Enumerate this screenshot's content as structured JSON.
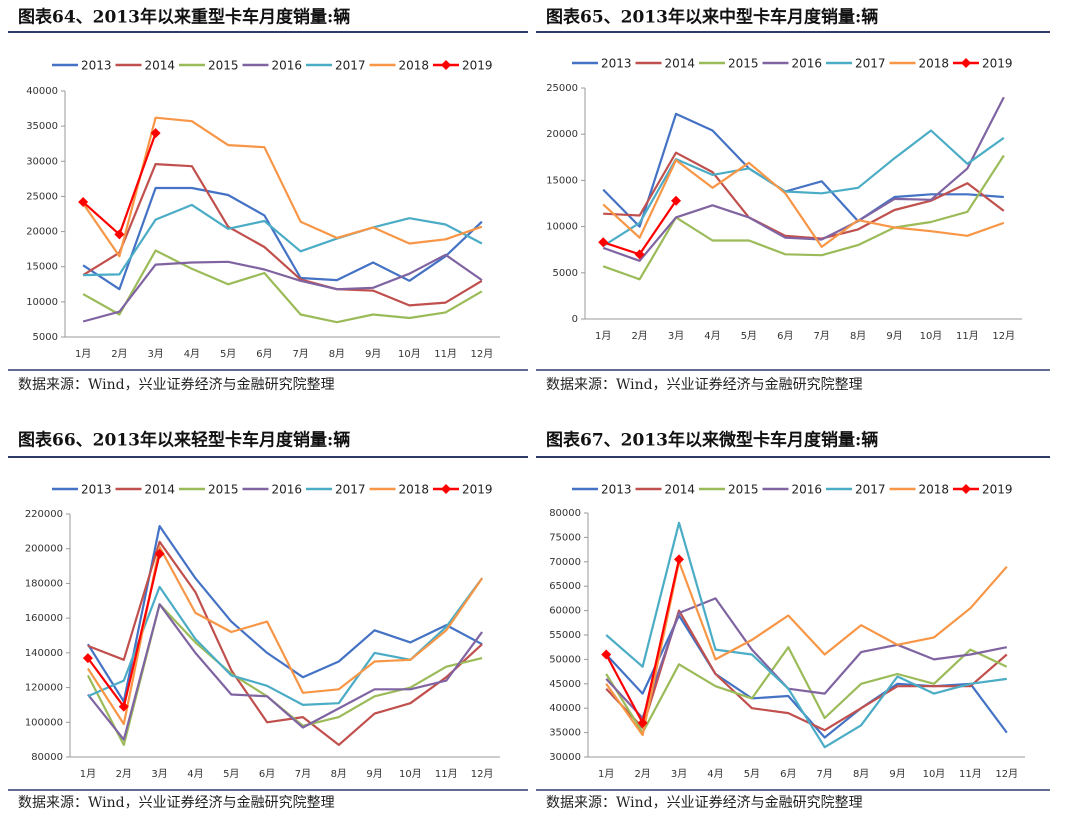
{
  "chart_data": [
    {
      "type": "line",
      "title": "图表64、2013年以来重型卡车月度销量:辆",
      "source": "数据来源：Wind，兴业证券经济与金融研究院整理",
      "categories": [
        "1月",
        "2月",
        "3月",
        "4月",
        "5月",
        "6月",
        "7月",
        "8月",
        "9月",
        "10月",
        "11月",
        "12月"
      ],
      "ylim": [
        5000,
        40000
      ],
      "yticks": [
        5000,
        10000,
        15000,
        20000,
        25000,
        30000,
        35000,
        40000
      ],
      "series": [
        {
          "name": "2013",
          "color": "#4472c4",
          "values": [
            15200,
            11800,
            26200,
            26200,
            25200,
            22300,
            13400,
            13100,
            15600,
            13000,
            16500,
            21400
          ]
        },
        {
          "name": "2014",
          "color": "#c0504d",
          "values": [
            13800,
            17000,
            29600,
            29300,
            20700,
            17800,
            13200,
            11800,
            11600,
            9500,
            9900,
            13000
          ]
        },
        {
          "name": "2015",
          "color": "#9bbb59",
          "values": [
            11100,
            8200,
            17300,
            14700,
            12500,
            14100,
            8200,
            7100,
            8200,
            7700,
            8500,
            11500
          ]
        },
        {
          "name": "2016",
          "color": "#8064a2",
          "values": [
            7200,
            8600,
            15300,
            15600,
            15700,
            14600,
            13000,
            11800,
            12000,
            14000,
            16700,
            13100
          ]
        },
        {
          "name": "2017",
          "color": "#4bacc6",
          "values": [
            13800,
            13900,
            21700,
            23800,
            20400,
            21500,
            17200,
            19000,
            20600,
            21900,
            21000,
            18300
          ]
        },
        {
          "name": "2018",
          "color": "#f79646",
          "values": [
            24000,
            16500,
            36200,
            35700,
            32300,
            32000,
            21400,
            19100,
            20600,
            18300,
            18900,
            20700
          ]
        },
        {
          "name": "2019",
          "color": "#ff0000",
          "marker": "diamond",
          "values": [
            24200,
            19600,
            34000,
            null,
            null,
            null,
            null,
            null,
            null,
            null,
            null,
            null
          ]
        }
      ]
    },
    {
      "type": "line",
      "title": "图表65、2013年以来中型卡车月度销量:辆",
      "source": "数据来源：Wind，兴业证券经济与金融研究院整理",
      "categories": [
        "1月",
        "2月",
        "3月",
        "4月",
        "5月",
        "6月",
        "7月",
        "8月",
        "9月",
        "10月",
        "11月",
        "12月"
      ],
      "ylim": [
        0,
        25000
      ],
      "yticks": [
        0,
        5000,
        10000,
        15000,
        20000,
        25000
      ],
      "series": [
        {
          "name": "2013",
          "color": "#4472c4",
          "values": [
            14000,
            10000,
            22200,
            20400,
            16300,
            13800,
            14900,
            10600,
            13200,
            13500,
            13500,
            13200
          ]
        },
        {
          "name": "2014",
          "color": "#c0504d",
          "values": [
            11400,
            11200,
            18000,
            15900,
            11000,
            9000,
            8700,
            9700,
            11800,
            12800,
            14700,
            11700
          ]
        },
        {
          "name": "2015",
          "color": "#9bbb59",
          "values": [
            5700,
            4300,
            11000,
            8500,
            8500,
            7000,
            6900,
            8000,
            9900,
            10500,
            11600,
            17700
          ]
        },
        {
          "name": "2016",
          "color": "#8064a2",
          "values": [
            7700,
            6300,
            11000,
            12300,
            11000,
            8800,
            8600,
            10600,
            13000,
            12900,
            16300,
            24000
          ]
        },
        {
          "name": "2017",
          "color": "#4bacc6",
          "values": [
            7900,
            10400,
            17300,
            15600,
            16300,
            13800,
            13600,
            14200,
            17400,
            20400,
            16800,
            19600
          ]
        },
        {
          "name": "2018",
          "color": "#f79646",
          "values": [
            12400,
            8800,
            17200,
            14200,
            16900,
            13600,
            7800,
            10700,
            9900,
            9500,
            9000,
            10400
          ]
        },
        {
          "name": "2019",
          "color": "#ff0000",
          "marker": "diamond",
          "values": [
            8300,
            7000,
            12800,
            null,
            null,
            null,
            null,
            null,
            null,
            null,
            null,
            null
          ]
        }
      ]
    },
    {
      "type": "line",
      "title": "图表66、2013年以来轻型卡车月度销量:辆",
      "source": "数据来源：Wind，兴业证券经济与金融研究院整理",
      "categories": [
        "1月",
        "2月",
        "3月",
        "4月",
        "5月",
        "6月",
        "7月",
        "8月",
        "9月",
        "10月",
        "11月",
        "12月"
      ],
      "ylim": [
        80000,
        220000
      ],
      "yticks": [
        80000,
        100000,
        120000,
        140000,
        160000,
        180000,
        200000,
        220000
      ],
      "series": [
        {
          "name": "2013",
          "color": "#4472c4",
          "values": [
            145000,
            112000,
            213000,
            183000,
            158000,
            140000,
            126000,
            135000,
            153000,
            146000,
            156000,
            145000
          ]
        },
        {
          "name": "2014",
          "color": "#c0504d",
          "values": [
            144000,
            136000,
            204000,
            175000,
            130000,
            100000,
            103000,
            87000,
            105000,
            111000,
            126000,
            145000
          ]
        },
        {
          "name": "2015",
          "color": "#9bbb59",
          "values": [
            127000,
            87000,
            168000,
            146000,
            128000,
            115000,
            98000,
            103000,
            115000,
            120000,
            132000,
            137000
          ]
        },
        {
          "name": "2016",
          "color": "#8064a2",
          "values": [
            116000,
            90000,
            168000,
            140000,
            116000,
            115000,
            97000,
            108000,
            119000,
            119000,
            124000,
            152000
          ]
        },
        {
          "name": "2017",
          "color": "#4bacc6",
          "values": [
            115000,
            124000,
            178000,
            148000,
            127000,
            121000,
            110000,
            111000,
            140000,
            136000,
            155000,
            183000
          ]
        },
        {
          "name": "2018",
          "color": "#f79646",
          "values": [
            131000,
            99000,
            201000,
            163000,
            152000,
            158000,
            117000,
            119000,
            135000,
            136000,
            153000,
            183000
          ]
        },
        {
          "name": "2019",
          "color": "#ff0000",
          "marker": "diamond",
          "values": [
            137000,
            109000,
            197000,
            null,
            null,
            null,
            null,
            null,
            null,
            null,
            null,
            null
          ]
        }
      ]
    },
    {
      "type": "line",
      "title": "图表67、2013年以来微型卡车月度销量:辆",
      "source": "数据来源：Wind，兴业证券经济与金融研究院整理",
      "categories": [
        "1月",
        "2月",
        "3月",
        "4月",
        "5月",
        "6月",
        "7月",
        "8月",
        "9月",
        "10月",
        "11月",
        "12月"
      ],
      "ylim": [
        30000,
        80000
      ],
      "yticks": [
        30000,
        35000,
        40000,
        45000,
        50000,
        55000,
        60000,
        65000,
        70000,
        75000,
        80000
      ],
      "series": [
        {
          "name": "2013",
          "color": "#4472c4",
          "values": [
            51000,
            43000,
            59000,
            47000,
            42000,
            42500,
            34000,
            40000,
            45000,
            44500,
            45000,
            35000
          ]
        },
        {
          "name": "2014",
          "color": "#c0504d",
          "values": [
            44000,
            36000,
            60000,
            47000,
            40000,
            39000,
            35500,
            40000,
            44500,
            44500,
            44500,
            51000
          ]
        },
        {
          "name": "2015",
          "color": "#9bbb59",
          "values": [
            47000,
            35000,
            49000,
            44500,
            42000,
            52500,
            38000,
            45000,
            47000,
            45000,
            52000,
            48500
          ]
        },
        {
          "name": "2016",
          "color": "#8064a2",
          "values": [
            46000,
            38000,
            59500,
            62500,
            52000,
            44000,
            43000,
            51500,
            53000,
            50000,
            51000,
            52500
          ]
        },
        {
          "name": "2017",
          "color": "#4bacc6",
          "values": [
            55000,
            48500,
            78000,
            52000,
            51000,
            44000,
            32000,
            36500,
            46500,
            43000,
            45000,
            46000
          ]
        },
        {
          "name": "2018",
          "color": "#f79646",
          "values": [
            45000,
            34500,
            70000,
            50000,
            54000,
            59000,
            51000,
            57000,
            53000,
            54500,
            60500,
            69000
          ]
        },
        {
          "name": "2019",
          "color": "#ff0000",
          "marker": "diamond",
          "values": [
            51000,
            37000,
            70500,
            null,
            null,
            null,
            null,
            null,
            null,
            null,
            null,
            null
          ]
        }
      ]
    }
  ]
}
